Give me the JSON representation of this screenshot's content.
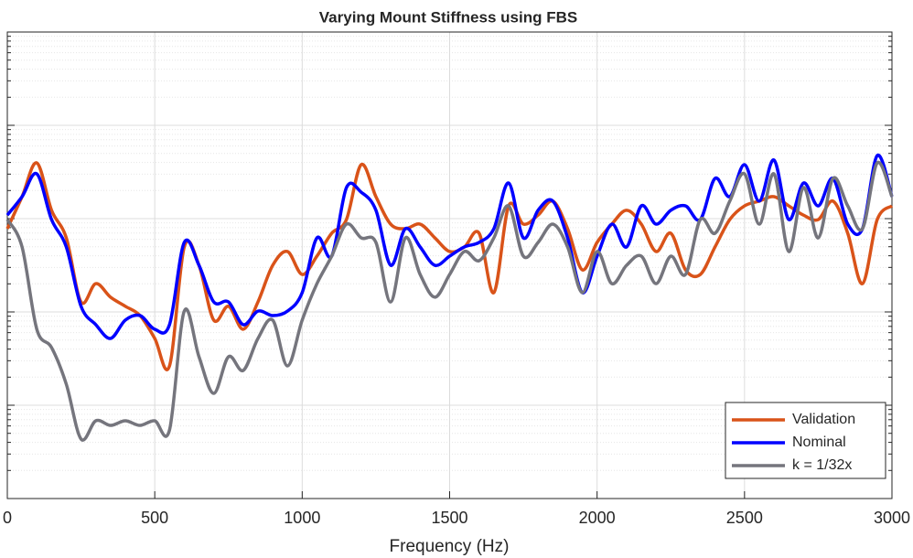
{
  "chart_data": {
    "type": "line",
    "title": "Varying Mount Stiffness using FBS",
    "x_label": "Frequency (Hz)",
    "x": [
      0,
      50,
      100,
      150,
      200,
      250,
      300,
      350,
      400,
      450,
      500,
      550,
      600,
      650,
      700,
      750,
      800,
      850,
      900,
      950,
      1000,
      1050,
      1100,
      1150,
      1200,
      1250,
      1300,
      1350,
      1400,
      1450,
      1500,
      1550,
      1600,
      1650,
      1700,
      1750,
      1800,
      1850,
      1900,
      1950,
      2000,
      2050,
      2100,
      2150,
      2200,
      2250,
      2300,
      2350,
      2400,
      2450,
      2500,
      2550,
      2600,
      2650,
      2700,
      2750,
      2800,
      2850,
      2900,
      2950,
      3000
    ],
    "xlim": [
      0,
      3000
    ],
    "xticks": [
      0,
      500,
      1000,
      1500,
      2000,
      2500,
      3000
    ],
    "ylim": [
      0.0001,
      10
    ],
    "y_scale": "log",
    "grid": true,
    "legend_position": "lower right",
    "series": [
      {
        "name": "Validation",
        "color": "#d95319",
        "values": [
          0.078,
          0.172,
          0.396,
          0.123,
          0.0622,
          0.0128,
          0.0201,
          0.0144,
          0.0115,
          0.00914,
          0.0052,
          0.00264,
          0.0497,
          0.0316,
          0.00817,
          0.0115,
          0.00652,
          0.0128,
          0.0316,
          0.0444,
          0.0252,
          0.0396,
          0.0697,
          0.0977,
          0.379,
          0.172,
          0.0873,
          0.078,
          0.0873,
          0.0622,
          0.0444,
          0.0497,
          0.0697,
          0.0161,
          0.137,
          0.0873,
          0.109,
          0.154,
          0.078,
          0.0282,
          0.0556,
          0.0873,
          0.123,
          0.0873,
          0.0444,
          0.0697,
          0.0282,
          0.0252,
          0.0497,
          0.0977,
          0.137,
          0.154,
          0.172,
          0.137,
          0.109,
          0.0977,
          0.154,
          0.0697,
          0.0201,
          0.0977,
          0.137
        ]
      },
      {
        "name": "Nominal",
        "color": "#0000ff",
        "values": [
          0.109,
          0.172,
          0.302,
          0.0977,
          0.0497,
          0.0115,
          0.0073,
          0.0052,
          0.00817,
          0.00914,
          0.00652,
          0.0073,
          0.0556,
          0.0316,
          0.0128,
          0.0128,
          0.0073,
          0.0102,
          0.00914,
          0.0102,
          0.0161,
          0.0622,
          0.0396,
          0.215,
          0.192,
          0.123,
          0.0316,
          0.078,
          0.0497,
          0.0316,
          0.0396,
          0.0497,
          0.0556,
          0.078,
          0.241,
          0.0622,
          0.123,
          0.154,
          0.0622,
          0.0161,
          0.0396,
          0.0873,
          0.0497,
          0.137,
          0.0873,
          0.123,
          0.137,
          0.0977,
          0.27,
          0.172,
          0.379,
          0.154,
          0.424,
          0.0977,
          0.241,
          0.137,
          0.27,
          0.0873,
          0.078,
          0.474,
          0.172
        ]
      },
      {
        "name": "k = 1/32x",
        "color": "#75757d",
        "values": [
          0.0977,
          0.0497,
          0.00652,
          0.00415,
          0.00168,
          0.000434,
          0.000681,
          0.000608,
          0.000681,
          0.000608,
          0.000681,
          0.000543,
          0.0102,
          0.00331,
          0.00134,
          0.00331,
          0.00236,
          0.0052,
          0.00817,
          0.00264,
          0.00817,
          0.0201,
          0.0396,
          0.0873,
          0.0622,
          0.0556,
          0.0128,
          0.0622,
          0.0252,
          0.0144,
          0.0252,
          0.0444,
          0.0354,
          0.0622,
          0.137,
          0.0396,
          0.0556,
          0.0873,
          0.0497,
          0.0161,
          0.0444,
          0.0201,
          0.0316,
          0.0396,
          0.0201,
          0.0396,
          0.0252,
          0.0977,
          0.0697,
          0.154,
          0.302,
          0.0873,
          0.302,
          0.0444,
          0.215,
          0.0622,
          0.27,
          0.137,
          0.078,
          0.396,
          0.172
        ]
      }
    ]
  }
}
